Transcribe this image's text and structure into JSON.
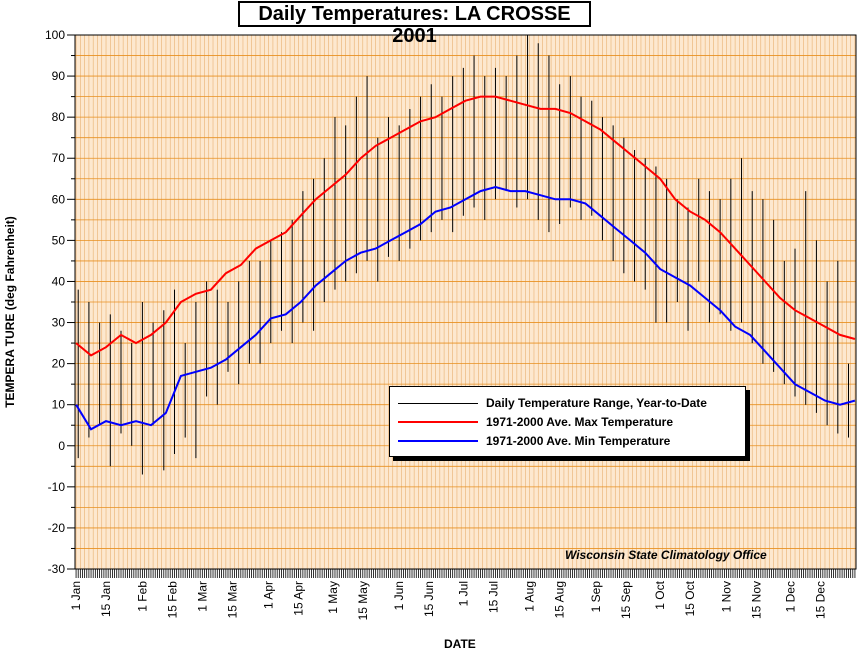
{
  "chart_data": {
    "type": "line",
    "title": "Daily Temperatures: LA CROSSE 2001",
    "xlabel": "DATE",
    "ylabel": "TEMPERA TURE (deg Fahrenheit)",
    "ylim": [
      -30,
      100
    ],
    "yticks": [
      100,
      90,
      80,
      70,
      60,
      50,
      40,
      30,
      20,
      10,
      0,
      -10,
      -20,
      -30
    ],
    "xlim": [
      "2001-01-01",
      "2001-12-31"
    ],
    "xtick_labels": [
      "1 Jan",
      "15 Jan",
      "1 Feb",
      "15 Feb",
      "1 Mar",
      "15 Mar",
      "1 Apr",
      "15 Apr",
      "1 May",
      "15 May",
      "1 Jun",
      "15 Jun",
      "1 Jul",
      "15 Jul",
      "1 Aug",
      "15 Aug",
      "1 Sep",
      "15 Sep",
      "1 Oct",
      "15 Oct",
      "1 Nov",
      "15 Nov",
      "1 Dec",
      "15 Dec"
    ],
    "grid": true,
    "legend_position": "lower-right",
    "series": [
      {
        "name": "Daily Temperature Range, Year-to-Date",
        "kind": "range",
        "color": "#000000",
        "x": [
          "2001-01-02",
          "2001-01-07",
          "2001-01-12",
          "2001-01-17",
          "2001-01-22",
          "2001-01-27",
          "2001-02-01",
          "2001-02-06",
          "2001-02-11",
          "2001-02-16",
          "2001-02-21",
          "2001-02-26",
          "2001-03-03",
          "2001-03-08",
          "2001-03-13",
          "2001-03-18",
          "2001-03-23",
          "2001-03-28",
          "2001-04-02",
          "2001-04-07",
          "2001-04-12",
          "2001-04-17",
          "2001-04-22",
          "2001-04-27",
          "2001-05-02",
          "2001-05-07",
          "2001-05-12",
          "2001-05-17",
          "2001-05-22",
          "2001-05-27",
          "2001-06-01",
          "2001-06-06",
          "2001-06-11",
          "2001-06-16",
          "2001-06-21",
          "2001-06-26",
          "2001-07-01",
          "2001-07-06",
          "2001-07-11",
          "2001-07-16",
          "2001-07-21",
          "2001-07-26",
          "2001-07-31",
          "2001-08-05",
          "2001-08-10",
          "2001-08-15",
          "2001-08-20",
          "2001-08-25",
          "2001-08-30",
          "2001-09-04",
          "2001-09-09",
          "2001-09-14",
          "2001-09-19",
          "2001-09-24",
          "2001-09-29",
          "2001-10-04",
          "2001-10-09",
          "2001-10-14",
          "2001-10-19",
          "2001-10-24",
          "2001-10-29",
          "2001-11-03",
          "2001-11-08",
          "2001-11-13",
          "2001-11-18",
          "2001-11-23",
          "2001-11-28",
          "2001-12-03",
          "2001-12-08",
          "2001-12-13",
          "2001-12-18",
          "2001-12-23",
          "2001-12-28"
        ],
        "low": [
          -3,
          2,
          5,
          -5,
          3,
          0,
          -7,
          5,
          -6,
          -2,
          2,
          -3,
          12,
          10,
          18,
          15,
          20,
          20,
          25,
          28,
          25,
          30,
          28,
          35,
          38,
          40,
          42,
          45,
          40,
          46,
          45,
          48,
          50,
          52,
          55,
          52,
          56,
          58,
          55,
          60,
          62,
          58,
          60,
          55,
          52,
          54,
          58,
          55,
          56,
          50,
          45,
          42,
          40,
          38,
          30,
          30,
          35,
          28,
          40,
          30,
          32,
          28,
          30,
          25,
          20,
          18,
          15,
          12,
          10,
          8,
          5,
          3,
          2
        ],
        "high": [
          38,
          35,
          30,
          32,
          28,
          25,
          35,
          30,
          33,
          38,
          25,
          35,
          40,
          38,
          35,
          40,
          45,
          45,
          50,
          52,
          55,
          62,
          65,
          70,
          80,
          78,
          85,
          90,
          75,
          80,
          78,
          82,
          85,
          88,
          85,
          90,
          92,
          95,
          90,
          92,
          90,
          95,
          100,
          98,
          95,
          88,
          90,
          85,
          84,
          80,
          78,
          75,
          72,
          70,
          68,
          65,
          60,
          58,
          65,
          62,
          60,
          65,
          70,
          62,
          60,
          55,
          45,
          48,
          62,
          50,
          40,
          45,
          20
        ]
      },
      {
        "name": "1971-2000 Ave. Max Temperature",
        "kind": "line",
        "color": "#ff0000",
        "x": [
          "2001-01-01",
          "2001-01-08",
          "2001-01-15",
          "2001-01-22",
          "2001-01-29",
          "2001-02-05",
          "2001-02-12",
          "2001-02-19",
          "2001-02-26",
          "2001-03-05",
          "2001-03-12",
          "2001-03-19",
          "2001-03-26",
          "2001-04-02",
          "2001-04-09",
          "2001-04-16",
          "2001-04-23",
          "2001-04-30",
          "2001-05-07",
          "2001-05-14",
          "2001-05-21",
          "2001-05-28",
          "2001-06-04",
          "2001-06-11",
          "2001-06-18",
          "2001-06-25",
          "2001-07-02",
          "2001-07-09",
          "2001-07-16",
          "2001-07-23",
          "2001-07-30",
          "2001-08-06",
          "2001-08-13",
          "2001-08-20",
          "2001-08-27",
          "2001-09-03",
          "2001-09-10",
          "2001-09-17",
          "2001-09-24",
          "2001-10-01",
          "2001-10-08",
          "2001-10-15",
          "2001-10-22",
          "2001-10-29",
          "2001-11-05",
          "2001-11-12",
          "2001-11-19",
          "2001-11-26",
          "2001-12-03",
          "2001-12-10",
          "2001-12-17",
          "2001-12-24",
          "2001-12-31"
        ],
        "values": [
          25,
          22,
          24,
          27,
          25,
          27,
          30,
          35,
          37,
          38,
          42,
          44,
          48,
          50,
          52,
          56,
          60,
          63,
          66,
          70,
          73,
          75,
          77,
          79,
          80,
          82,
          84,
          85,
          85,
          84,
          83,
          82,
          82,
          81,
          79,
          77,
          74,
          71,
          68,
          65,
          60,
          57,
          55,
          52,
          48,
          44,
          40,
          36,
          33,
          31,
          29,
          27,
          26
        ]
      },
      {
        "name": "1971-2000 Ave. Min Temperature",
        "kind": "line",
        "color": "#0000ff",
        "x": [
          "2001-01-01",
          "2001-01-08",
          "2001-01-15",
          "2001-01-22",
          "2001-01-29",
          "2001-02-05",
          "2001-02-12",
          "2001-02-19",
          "2001-02-26",
          "2001-03-05",
          "2001-03-12",
          "2001-03-19",
          "2001-03-26",
          "2001-04-02",
          "2001-04-09",
          "2001-04-16",
          "2001-04-23",
          "2001-04-30",
          "2001-05-07",
          "2001-05-14",
          "2001-05-21",
          "2001-05-28",
          "2001-06-04",
          "2001-06-11",
          "2001-06-18",
          "2001-06-25",
          "2001-07-02",
          "2001-07-09",
          "2001-07-16",
          "2001-07-23",
          "2001-07-30",
          "2001-08-06",
          "2001-08-13",
          "2001-08-20",
          "2001-08-27",
          "2001-09-03",
          "2001-09-10",
          "2001-09-17",
          "2001-09-24",
          "2001-10-01",
          "2001-10-08",
          "2001-10-15",
          "2001-10-22",
          "2001-10-29",
          "2001-11-05",
          "2001-11-12",
          "2001-11-19",
          "2001-11-26",
          "2001-12-03",
          "2001-12-10",
          "2001-12-17",
          "2001-12-24",
          "2001-12-31"
        ],
        "values": [
          10,
          4,
          6,
          5,
          6,
          5,
          8,
          17,
          18,
          19,
          21,
          24,
          27,
          31,
          32,
          35,
          39,
          42,
          45,
          47,
          48,
          50,
          52,
          54,
          57,
          58,
          60,
          62,
          63,
          62,
          62,
          61,
          60,
          60,
          59,
          56,
          53,
          50,
          47,
          43,
          41,
          39,
          36,
          33,
          29,
          27,
          23,
          19,
          15,
          13,
          11,
          10,
          11
        ]
      }
    ],
    "annotation": "Wisconsin State Climatology Office"
  }
}
